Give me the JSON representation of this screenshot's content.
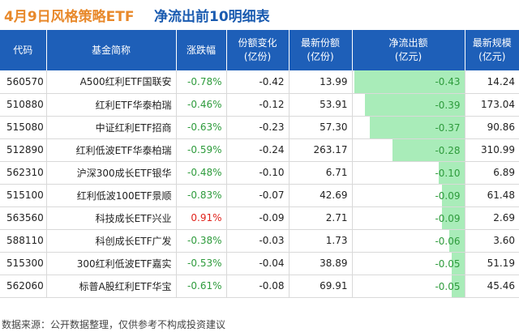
{
  "title": {
    "left": "4月9日风格策略ETF",
    "right": "净流出前10明细表"
  },
  "headers": [
    "代码",
    "基金简称",
    "涨跌幅",
    "份额变化\n(亿份)",
    "最新份额\n(亿份)",
    "净流出额\n(亿元)",
    "最新规模\n(亿元)"
  ],
  "rows": [
    {
      "code": "560570",
      "name": "A500红利ETF国联安",
      "change": "-0.78%",
      "share_change": "-0.42",
      "shares": "13.99",
      "outflow": "-0.43",
      "outflow_value": 0.43,
      "scale": "14.24"
    },
    {
      "code": "510880",
      "name": "红利ETF华泰柏瑞",
      "change": "-0.46%",
      "share_change": "-0.12",
      "shares": "53.91",
      "outflow": "-0.39",
      "outflow_value": 0.39,
      "scale": "173.04"
    },
    {
      "code": "515080",
      "name": "中证红利ETF招商",
      "change": "-0.63%",
      "share_change": "-0.23",
      "shares": "57.30",
      "outflow": "-0.37",
      "outflow_value": 0.37,
      "scale": "90.86"
    },
    {
      "code": "512890",
      "name": "红利低波ETF华泰柏瑞",
      "change": "-0.59%",
      "share_change": "-0.24",
      "shares": "263.17",
      "outflow": "-0.28",
      "outflow_value": 0.28,
      "scale": "310.99"
    },
    {
      "code": "562310",
      "name": "沪深300成长ETF银华",
      "change": "-0.48%",
      "share_change": "-0.10",
      "shares": "6.71",
      "outflow": "-0.10",
      "outflow_value": 0.1,
      "scale": "6.89"
    },
    {
      "code": "515100",
      "name": "红利低波100ETF景顺",
      "change": "-0.83%",
      "share_change": "-0.07",
      "shares": "42.69",
      "outflow": "-0.09",
      "outflow_value": 0.09,
      "scale": "61.48"
    },
    {
      "code": "563560",
      "name": "科技成长ETF兴业",
      "change": "0.91%",
      "share_change": "-0.09",
      "shares": "2.71",
      "outflow": "-0.09",
      "outflow_value": 0.09,
      "scale": "2.69"
    },
    {
      "code": "588110",
      "name": "科创成长ETF广发",
      "change": "-0.38%",
      "share_change": "-0.03",
      "shares": "1.73",
      "outflow": "-0.06",
      "outflow_value": 0.06,
      "scale": "3.60"
    },
    {
      "code": "515300",
      "name": "300红利低波ETF嘉实",
      "change": "-0.53%",
      "share_change": "-0.04",
      "shares": "38.89",
      "outflow": "-0.05",
      "outflow_value": 0.05,
      "scale": "51.19"
    },
    {
      "code": "562060",
      "name": "标普A股红利ETF华宝",
      "change": "-0.61%",
      "share_change": "-0.08",
      "shares": "69.91",
      "outflow": "-0.05",
      "outflow_value": 0.05,
      "scale": "45.46"
    }
  ],
  "colors": {
    "header_bg": "#1e5fb8",
    "title_orange": "#e8892b",
    "title_blue": "#1a5bb0",
    "negative": "#2e9b3c",
    "positive": "#e0221b",
    "bar": "#a9ecb9"
  },
  "footer": "数据来源：公开数据整理，仅供参考不构成投资建议"
}
